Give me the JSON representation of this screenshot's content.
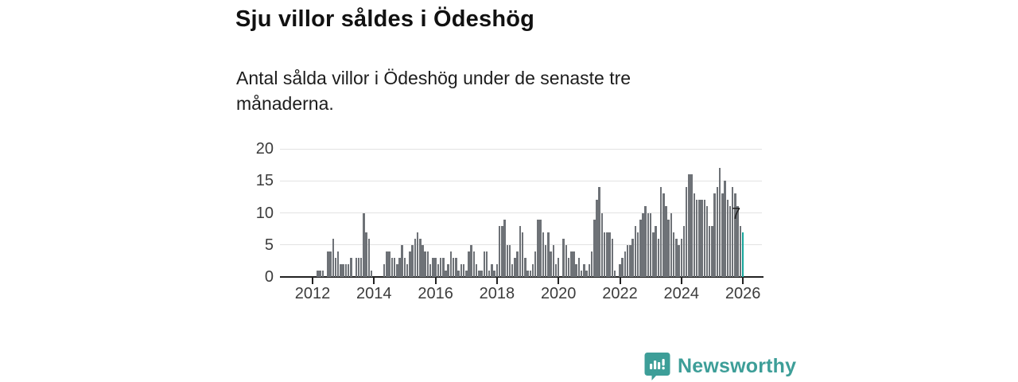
{
  "header": {
    "title": "Sju villor såldes i Ödeshög",
    "subtitle": "Antal sålda villor i Ödeshög under de senaste tre månaderna."
  },
  "chart_data": {
    "type": "bar",
    "title": "Sju villor såldes i Ödeshög",
    "xlabel": "",
    "ylabel": "",
    "x_unit": "month",
    "x_start_month": "2012-03",
    "x_end_month": "2026-01",
    "ylim": [
      0,
      20
    ],
    "yticks": [
      0,
      5,
      10,
      15,
      20
    ],
    "xticks": [
      "2012",
      "2014",
      "2016",
      "2018",
      "2020",
      "2022",
      "2024",
      "2026"
    ],
    "grid": "horizontal",
    "legend": "none",
    "bar_color": "#6e7277",
    "highlight_color": "#17a59b",
    "highlight_index": "last",
    "highlight_label": "7",
    "values": [
      1,
      1,
      1,
      0,
      4,
      4,
      6,
      3,
      4,
      2,
      2,
      2,
      2,
      3,
      0,
      3,
      3,
      3,
      10,
      7,
      6,
      1,
      0,
      0,
      0,
      0,
      2,
      4,
      4,
      3,
      3,
      2,
      3,
      5,
      3,
      2,
      4,
      5,
      6,
      7,
      6,
      5,
      4,
      4,
      2,
      3,
      3,
      2,
      3,
      3,
      1,
      2,
      4,
      3,
      3,
      1,
      2,
      2,
      1,
      4,
      5,
      4,
      2,
      1,
      1,
      4,
      4,
      1,
      2,
      1,
      2,
      8,
      8,
      9,
      5,
      5,
      2,
      3,
      4,
      8,
      7,
      3,
      1,
      1,
      2,
      4,
      9,
      9,
      7,
      5,
      7,
      4,
      5,
      2,
      3,
      0,
      6,
      5,
      3,
      4,
      4,
      2,
      3,
      1,
      2,
      1,
      2,
      4,
      9,
      12,
      14,
      10,
      7,
      7,
      7,
      6,
      1,
      0,
      2,
      3,
      4,
      5,
      5,
      6,
      8,
      7,
      9,
      10,
      11,
      10,
      10,
      7,
      8,
      6,
      14,
      13,
      11,
      9,
      10,
      7,
      6,
      5,
      6,
      8,
      14,
      16,
      16,
      13,
      12,
      12,
      12,
      12,
      11,
      8,
      8,
      13,
      14,
      17,
      13,
      15,
      12,
      11,
      14,
      13,
      11,
      8,
      7
    ]
  },
  "footer": {
    "brand": "Newsworthy",
    "brand_color": "#3d9e98",
    "logo_icon": "bar-chart-speech-bubble-icon"
  }
}
